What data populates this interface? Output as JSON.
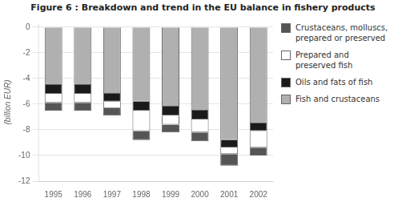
{
  "chart_data": {
    "type": "bar",
    "title": "Figure 6 : Breakdown and trend in the EU balance in fishery products",
    "y_label": "(billion EUR)",
    "categories": [
      "1995",
      "1996",
      "1997",
      "1998",
      "1999",
      "2000",
      "2001",
      "2002"
    ],
    "series": [
      {
        "name": "Fish and crustaceans",
        "color": "#b0b0b0",
        "values": [
          -4.5,
          -4.5,
          -5.2,
          -5.8,
          -6.2,
          -6.5,
          -8.8,
          -7.5
        ]
      },
      {
        "name": "Oils and fats of fish",
        "color": "#1a1a1a",
        "values": [
          -0.7,
          -0.7,
          -0.6,
          -0.7,
          -0.7,
          -0.7,
          -0.6,
          -0.6
        ]
      },
      {
        "name": "Prepared and preserved fish",
        "color": "#ffffff",
        "values": [
          -0.7,
          -0.7,
          -0.5,
          -1.6,
          -0.7,
          -1.0,
          -0.5,
          -1.3
        ]
      },
      {
        "name": "Crustaceans, molluscs,\nprepared or preserved",
        "color": "#555555",
        "values": [
          -0.6,
          -0.6,
          -0.6,
          -0.7,
          -0.6,
          -0.7,
          -0.9,
          -0.6
        ]
      }
    ],
    "stacked": true,
    "ylim": [
      -12,
      0.3
    ],
    "yticks": [
      0,
      -2,
      -4,
      -6,
      -8,
      -10,
      -12
    ],
    "grid": true,
    "legend": "right"
  }
}
